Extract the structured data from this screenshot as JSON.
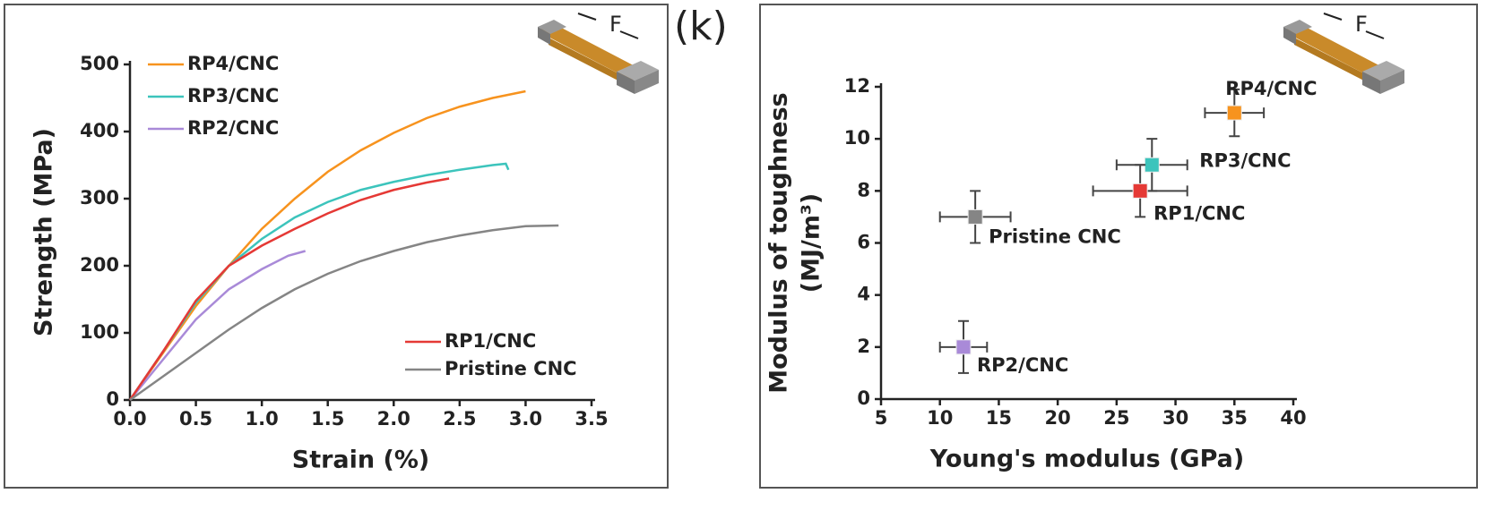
{
  "chart_data": [
    {
      "type": "line",
      "xlabel": "Strain (%)",
      "ylabel": "Strength (MPa)",
      "annotation": "F",
      "xlim": [
        0,
        3.5
      ],
      "ylim": [
        0,
        500
      ],
      "xticks": [
        {
          "value": 0,
          "label": "0.0"
        },
        0.5,
        {
          "value": 1,
          "label": "1.0"
        },
        1.5,
        {
          "value": 2,
          "label": "2.0"
        },
        2.5,
        {
          "value": 3,
          "label": "3.0"
        },
        3.5
      ],
      "yticks": [
        0,
        100,
        200,
        300,
        400,
        500
      ],
      "series": [
        {
          "name": "RP4/CNC",
          "color": "#f7931e",
          "x": [
            0,
            0.25,
            0.5,
            0.75,
            1.0,
            1.25,
            1.5,
            1.75,
            2.0,
            2.25,
            2.5,
            2.75,
            3.0
          ],
          "values": [
            0,
            70,
            140,
            200,
            255,
            300,
            340,
            372,
            398,
            420,
            437,
            450,
            460
          ]
        },
        {
          "name": "RP3/CNC",
          "color": "#3cc4bc",
          "x": [
            0,
            0.25,
            0.5,
            0.75,
            1.0,
            1.25,
            1.5,
            1.75,
            2.0,
            2.25,
            2.5,
            2.75,
            2.85,
            2.87
          ],
          "values": [
            0,
            72,
            145,
            200,
            240,
            272,
            295,
            313,
            325,
            335,
            343,
            350,
            352,
            343
          ]
        },
        {
          "name": "RP2/CNC",
          "color": "#a98ad8",
          "x": [
            0,
            0.25,
            0.5,
            0.75,
            1.0,
            1.2,
            1.33
          ],
          "values": [
            0,
            60,
            120,
            165,
            195,
            215,
            222
          ]
        },
        {
          "name": "RP1/CNC",
          "color": "#e53935",
          "x": [
            0,
            0.25,
            0.5,
            0.75,
            1.0,
            1.25,
            1.5,
            1.75,
            2.0,
            2.25,
            2.42
          ],
          "values": [
            0,
            72,
            148,
            200,
            230,
            255,
            278,
            298,
            313,
            324,
            330
          ]
        },
        {
          "name": "Pristine CNC",
          "color": "#858585",
          "x": [
            0,
            0.25,
            0.5,
            0.75,
            1.0,
            1.25,
            1.5,
            1.75,
            2.0,
            2.25,
            2.5,
            2.75,
            3.0,
            3.25
          ],
          "values": [
            0,
            35,
            70,
            105,
            137,
            165,
            188,
            207,
            222,
            235,
            245,
            253,
            259,
            260
          ]
        }
      ]
    },
    {
      "type": "scatter",
      "panel_label": "(k)",
      "annotation": "F",
      "xlabel": "Young's modulus (GPa)",
      "ylabel": [
        "Modulus of toughness",
        "(MJ/m³)"
      ],
      "xlim": [
        5,
        40
      ],
      "ylim": [
        0,
        12
      ],
      "xticks": [
        5,
        10,
        15,
        20,
        25,
        30,
        35,
        40
      ],
      "yticks": [
        0,
        2,
        4,
        6,
        8,
        10,
        12
      ],
      "series": [
        {
          "name": "RP4/CNC",
          "color": "#f7931e",
          "x": [
            35
          ],
          "values": [
            11
          ],
          "xerr": [
            2.5
          ],
          "yerr": [
            0.9
          ]
        },
        {
          "name": "RP3/CNC",
          "color": "#3cc4bc",
          "x": [
            28
          ],
          "values": [
            9
          ],
          "xerr": [
            3
          ],
          "yerr": [
            1
          ]
        },
        {
          "name": "RP1/CNC",
          "color": "#e53935",
          "x": [
            27
          ],
          "values": [
            8
          ],
          "xerr": [
            4
          ],
          "yerr": [
            1
          ]
        },
        {
          "name": "Pristine CNC",
          "color": "#858585",
          "x": [
            13
          ],
          "values": [
            7
          ],
          "xerr": [
            3
          ],
          "yerr": [
            1
          ]
        },
        {
          "name": "RP2/CNC",
          "color": "#a98ad8",
          "x": [
            12
          ],
          "values": [
            2
          ],
          "xerr": [
            2
          ],
          "yerr": [
            1
          ]
        }
      ]
    }
  ]
}
